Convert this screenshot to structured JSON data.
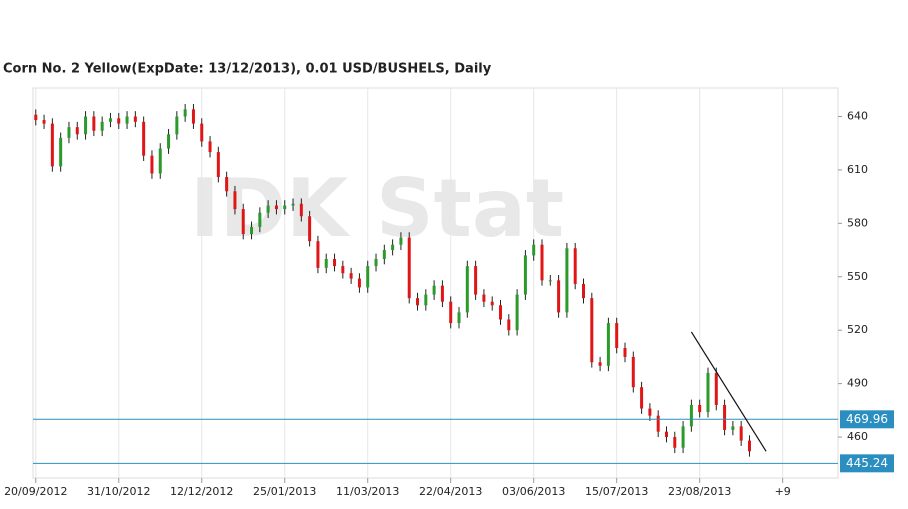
{
  "chart_data": {
    "type": "candlestick",
    "title": "Corn  No. 2 Yellow(ExpDate: 13/12/2013), 0.01 USD/BUSHELS, Daily",
    "watermark": "IDK Stat",
    "x": [
      0,
      3,
      6,
      9,
      12,
      15,
      18,
      21,
      24,
      27,
      30,
      33,
      36,
      39,
      42,
      45,
      48,
      51,
      54,
      57,
      60,
      63,
      66,
      69,
      72,
      75,
      78,
      81,
      84,
      87,
      90,
      93,
      96,
      99,
      102,
      105,
      108,
      111,
      114,
      117,
      120,
      123,
      126,
      129,
      132,
      135,
      138,
      141,
      144,
      147,
      150,
      153,
      156,
      159,
      162,
      165,
      168,
      171,
      174,
      177,
      180,
      183,
      186,
      189,
      192,
      195,
      198,
      201,
      204,
      207,
      210,
      213,
      216,
      219,
      222,
      225,
      228,
      231,
      234,
      237,
      240,
      243,
      246,
      249,
      252,
      255,
      258
    ],
    "open": [
      641,
      638,
      636,
      612,
      628,
      634,
      630,
      640,
      632,
      637,
      639,
      636,
      640,
      637,
      618,
      608,
      622,
      630,
      640,
      644,
      636,
      626,
      620,
      606,
      598,
      588,
      574,
      578,
      586,
      590,
      588,
      590,
      591,
      584,
      570,
      555,
      560,
      556,
      552,
      549,
      544,
      556,
      560,
      565,
      568,
      572,
      538,
      534,
      540,
      545,
      536,
      524,
      530,
      556,
      540,
      536,
      534,
      526,
      520,
      540,
      562,
      568,
      548,
      548,
      530,
      566,
      546,
      538,
      502,
      500,
      524,
      510,
      505,
      488,
      476,
      472,
      463,
      460,
      454,
      466,
      478,
      474,
      496,
      478,
      464,
      466,
      458
    ],
    "high": [
      644,
      641,
      639,
      631,
      637,
      637,
      643,
      643,
      640,
      642,
      642,
      643,
      643,
      640,
      621,
      625,
      633,
      643,
      647,
      647,
      639,
      629,
      623,
      609,
      601,
      591,
      581,
      589,
      593,
      593,
      593,
      594,
      594,
      587,
      573,
      563,
      563,
      559,
      555,
      552,
      559,
      563,
      568,
      571,
      575,
      575,
      541,
      543,
      548,
      548,
      539,
      533,
      559,
      559,
      543,
      539,
      537,
      529,
      543,
      565,
      571,
      571,
      551,
      551,
      569,
      569,
      549,
      541,
      505,
      527,
      527,
      513,
      508,
      491,
      479,
      475,
      466,
      463,
      469,
      481,
      481,
      499,
      499,
      481,
      469,
      469,
      461
    ],
    "low": [
      635,
      633,
      609,
      609,
      625,
      627,
      627,
      629,
      629,
      634,
      633,
      633,
      634,
      615,
      605,
      605,
      619,
      627,
      637,
      633,
      623,
      617,
      603,
      595,
      585,
      571,
      571,
      575,
      583,
      585,
      585,
      587,
      581,
      567,
      552,
      552,
      553,
      549,
      546,
      541,
      541,
      553,
      557,
      562,
      565,
      535,
      531,
      531,
      537,
      533,
      521,
      521,
      527,
      537,
      533,
      531,
      523,
      517,
      517,
      537,
      559,
      545,
      545,
      527,
      527,
      543,
      535,
      499,
      497,
      497,
      507,
      502,
      485,
      473,
      469,
      460,
      457,
      451,
      451,
      463,
      471,
      471,
      475,
      461,
      461,
      455,
      449
    ],
    "close": [
      638,
      636,
      612,
      628,
      634,
      630,
      640,
      632,
      637,
      639,
      636,
      640,
      637,
      618,
      608,
      622,
      630,
      640,
      644,
      636,
      626,
      620,
      606,
      598,
      588,
      574,
      578,
      586,
      590,
      588,
      590,
      591,
      584,
      570,
      555,
      560,
      556,
      552,
      549,
      544,
      556,
      560,
      565,
      568,
      572,
      538,
      534,
      540,
      545,
      536,
      524,
      530,
      556,
      540,
      536,
      534,
      526,
      520,
      540,
      562,
      568,
      548,
      548,
      530,
      566,
      546,
      538,
      502,
      500,
      524,
      510,
      505,
      488,
      476,
      472,
      463,
      460,
      454,
      466,
      478,
      474,
      496,
      478,
      464,
      466,
      458,
      452
    ],
    "up_color": "#2a9a2a",
    "down_color": "#e01515",
    "wick_color": "#222222",
    "xlim": [
      -1,
      290
    ],
    "ylim": [
      437,
      656
    ],
    "xticks": [
      {
        "value": 0,
        "label": "20/09/2012"
      },
      {
        "value": 30,
        "label": "31/10/2012"
      },
      {
        "value": 60,
        "label": "12/12/2012"
      },
      {
        "value": 90,
        "label": "25/01/2013"
      },
      {
        "value": 120,
        "label": "11/03/2013"
      },
      {
        "value": 150,
        "label": "22/04/2013"
      },
      {
        "value": 180,
        "label": "03/06/2013"
      },
      {
        "value": 210,
        "label": "15/07/2013"
      },
      {
        "value": 240,
        "label": "23/08/2013"
      },
      {
        "value": 270,
        "label": "+9"
      }
    ],
    "yticks": [
      460,
      490,
      520,
      550,
      580,
      610,
      640
    ],
    "grid": true,
    "hlines": [
      469.96,
      445.24
    ],
    "hline_color": "#2a8fc0",
    "trendline": {
      "x": [
        237,
        264
      ],
      "y": [
        519,
        452
      ],
      "color": "#111111"
    }
  }
}
